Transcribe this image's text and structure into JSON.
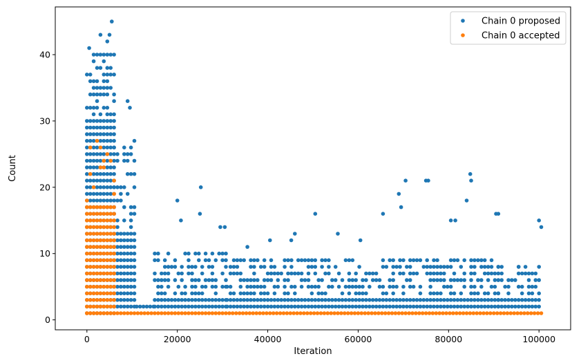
{
  "chart_data": {
    "type": "scatter",
    "xlabel": "Iteration",
    "ylabel": "Count",
    "xlim": [
      -7000,
      107000
    ],
    "ylim": [
      -1.5,
      47.2
    ],
    "xticks": [
      0,
      20000,
      40000,
      60000,
      80000,
      100000
    ],
    "xtick_labels": [
      "0",
      "20000",
      "40000",
      "60000",
      "80000",
      "100000"
    ],
    "yticks": [
      0,
      10,
      20,
      30,
      40
    ],
    "ytick_labels": [
      "0",
      "10",
      "20",
      "30",
      "40"
    ],
    "grid": false,
    "legend_position": "top-right",
    "series": [
      {
        "name": "Chain 0 proposed",
        "color": "#1f77b4",
        "bands": [
          {
            "x": [
              0,
              6000
            ],
            "y": [
              1,
              30
            ],
            "fill": 1.0
          },
          {
            "x": [
              0,
              6000
            ],
            "y": [
              31,
              40
            ],
            "fill": 0.55
          },
          {
            "x": [
              6000,
              11000
            ],
            "y": [
              2,
              13
            ],
            "fill": 1.0
          },
          {
            "x": [
              6000,
              11000
            ],
            "y": [
              14,
              27
            ],
            "fill": 0.35
          },
          {
            "x": [
              11000,
              15000
            ],
            "y": [
              2,
              2
            ],
            "fill": 1.0
          },
          {
            "x": [
              15000,
              31000
            ],
            "y": [
              2,
              3
            ],
            "fill": 1.0
          },
          {
            "x": [
              15000,
              31000
            ],
            "y": [
              4,
              10
            ],
            "fill": 0.6
          },
          {
            "x": [
              31000,
              91000
            ],
            "y": [
              2,
              3
            ],
            "fill": 1.0
          },
          {
            "x": [
              31000,
              91000
            ],
            "y": [
              4,
              9
            ],
            "fill": 0.55
          },
          {
            "x": [
              91000,
              100500
            ],
            "y": [
              2,
              3
            ],
            "fill": 1.0
          },
          {
            "x": [
              91000,
              100500
            ],
            "y": [
              4,
              8
            ],
            "fill": 0.45
          }
        ],
        "spikes": [
          {
            "x": 9000,
            "y": 33
          },
          {
            "x": 9500,
            "y": 32
          },
          {
            "x": 10500,
            "y": 27
          },
          {
            "x": 20000,
            "y": 18
          },
          {
            "x": 20800,
            "y": 15
          },
          {
            "x": 25200,
            "y": 20
          },
          {
            "x": 25000,
            "y": 16
          },
          {
            "x": 29500,
            "y": 14
          },
          {
            "x": 30500,
            "y": 14
          },
          {
            "x": 35500,
            "y": 11
          },
          {
            "x": 40500,
            "y": 12
          },
          {
            "x": 45200,
            "y": 12
          },
          {
            "x": 46000,
            "y": 13
          },
          {
            "x": 50500,
            "y": 16
          },
          {
            "x": 55500,
            "y": 13
          },
          {
            "x": 60500,
            "y": 12
          },
          {
            "x": 65500,
            "y": 16
          },
          {
            "x": 69000,
            "y": 19
          },
          {
            "x": 69500,
            "y": 17
          },
          {
            "x": 70500,
            "y": 21
          },
          {
            "x": 75000,
            "y": 21
          },
          {
            "x": 75500,
            "y": 21
          },
          {
            "x": 80500,
            "y": 15
          },
          {
            "x": 81500,
            "y": 15
          },
          {
            "x": 84000,
            "y": 18
          },
          {
            "x": 84800,
            "y": 22
          },
          {
            "x": 85000,
            "y": 21
          },
          {
            "x": 90500,
            "y": 16
          },
          {
            "x": 91000,
            "y": 16
          },
          {
            "x": 95500,
            "y": 8
          },
          {
            "x": 100000,
            "y": 15
          },
          {
            "x": 100500,
            "y": 14
          },
          {
            "x": 3000,
            "y": 43
          },
          {
            "x": 4500,
            "y": 42
          },
          {
            "x": 5000,
            "y": 43
          },
          {
            "x": 5500,
            "y": 45
          },
          {
            "x": 500,
            "y": 41
          }
        ]
      },
      {
        "name": "Chain 0 accepted",
        "color": "#ff7f0e",
        "bands": [
          {
            "x": [
              0,
              6000
            ],
            "y": [
              1,
              17
            ],
            "fill": 1.0
          },
          {
            "x": [
              0,
              6000
            ],
            "y": [
              18,
              27
            ],
            "fill": 0.18
          },
          {
            "x": [
              0,
              100500
            ],
            "y": [
              1,
              1
            ],
            "fill": 1.0
          }
        ],
        "spikes": []
      }
    ]
  }
}
